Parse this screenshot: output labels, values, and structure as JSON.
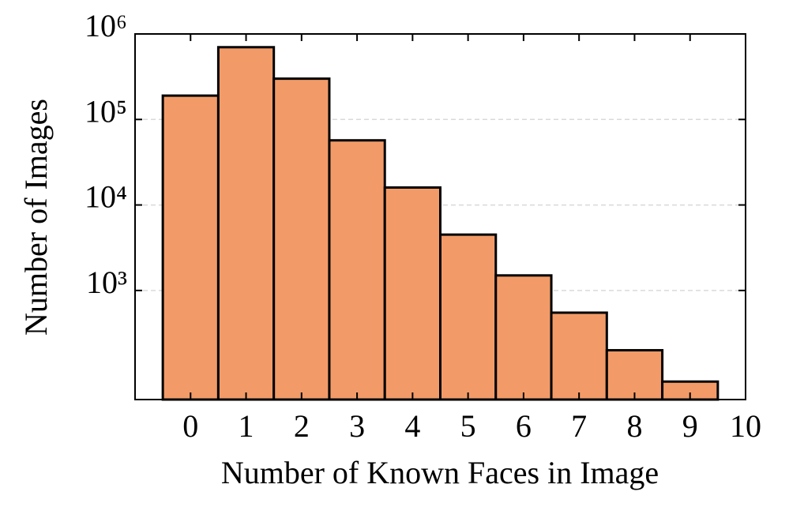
{
  "chart_data": {
    "type": "histogram",
    "xlabel": "Number of Known Faces in Image",
    "ylabel": "Number of Images",
    "bins": [
      -0.5,
      0.5,
      1.5,
      2.5,
      3.5,
      4.5,
      5.5,
      6.5,
      7.5,
      8.5,
      9.5
    ],
    "values": [
      190000,
      700000,
      300000,
      57000,
      16000,
      4500,
      1500,
      550,
      200,
      86
    ],
    "color": "#f29b68",
    "xlim": [
      -1,
      10
    ],
    "xticks": [
      0,
      1,
      2,
      3,
      4,
      5,
      6,
      7,
      8,
      9,
      10
    ],
    "ylim": [
      53,
      1000000
    ],
    "yticks": [
      {
        "value": 1000,
        "label": "10³"
      },
      {
        "value": 10000,
        "label": "10⁴"
      },
      {
        "value": 100000,
        "label": "10⁵"
      },
      {
        "value": 1000000,
        "label": "10⁶"
      }
    ],
    "log_y": true,
    "grid": true
  }
}
